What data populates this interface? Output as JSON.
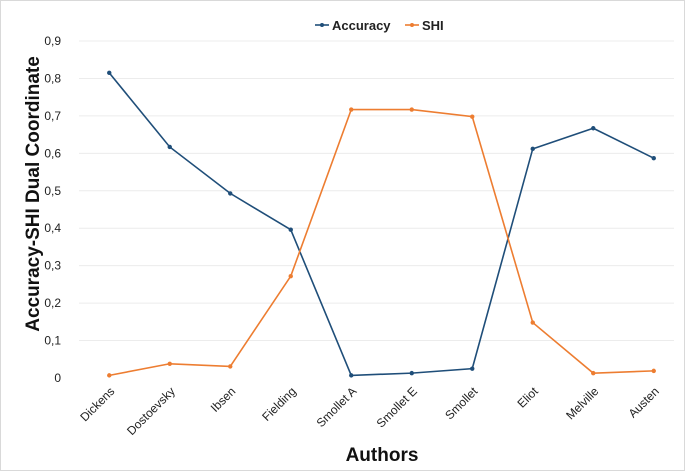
{
  "chart_data": {
    "type": "line",
    "title": "",
    "xlabel": "Authors",
    "ylabel": "Accuracy-SHI Dual Coordinate",
    "categories": [
      "Dickens",
      "Dostoevsky",
      "Ibsen",
      "Fielding",
      "Smollet A",
      "Smollet E",
      "Smollet",
      "Eliot",
      "Melville",
      "Austen"
    ],
    "ylim": [
      0,
      0.9
    ],
    "yticks": [
      "0",
      "0,1",
      "0,2",
      "0,3",
      "0,4",
      "0,5",
      "0,6",
      "0,7",
      "0,8",
      "0,9"
    ],
    "grid": true,
    "legend_position": "top",
    "series": [
      {
        "name": "Accuracy",
        "color": "#1f4e79",
        "values": [
          0.815,
          0.617,
          0.493,
          0.396,
          0.007,
          0.013,
          0.025,
          0.612,
          0.667,
          0.587
        ]
      },
      {
        "name": "SHI",
        "color": "#ed7d31",
        "values": [
          0.007,
          0.038,
          0.031,
          0.272,
          0.717,
          0.717,
          0.698,
          0.148,
          0.013,
          0.019
        ]
      }
    ]
  }
}
